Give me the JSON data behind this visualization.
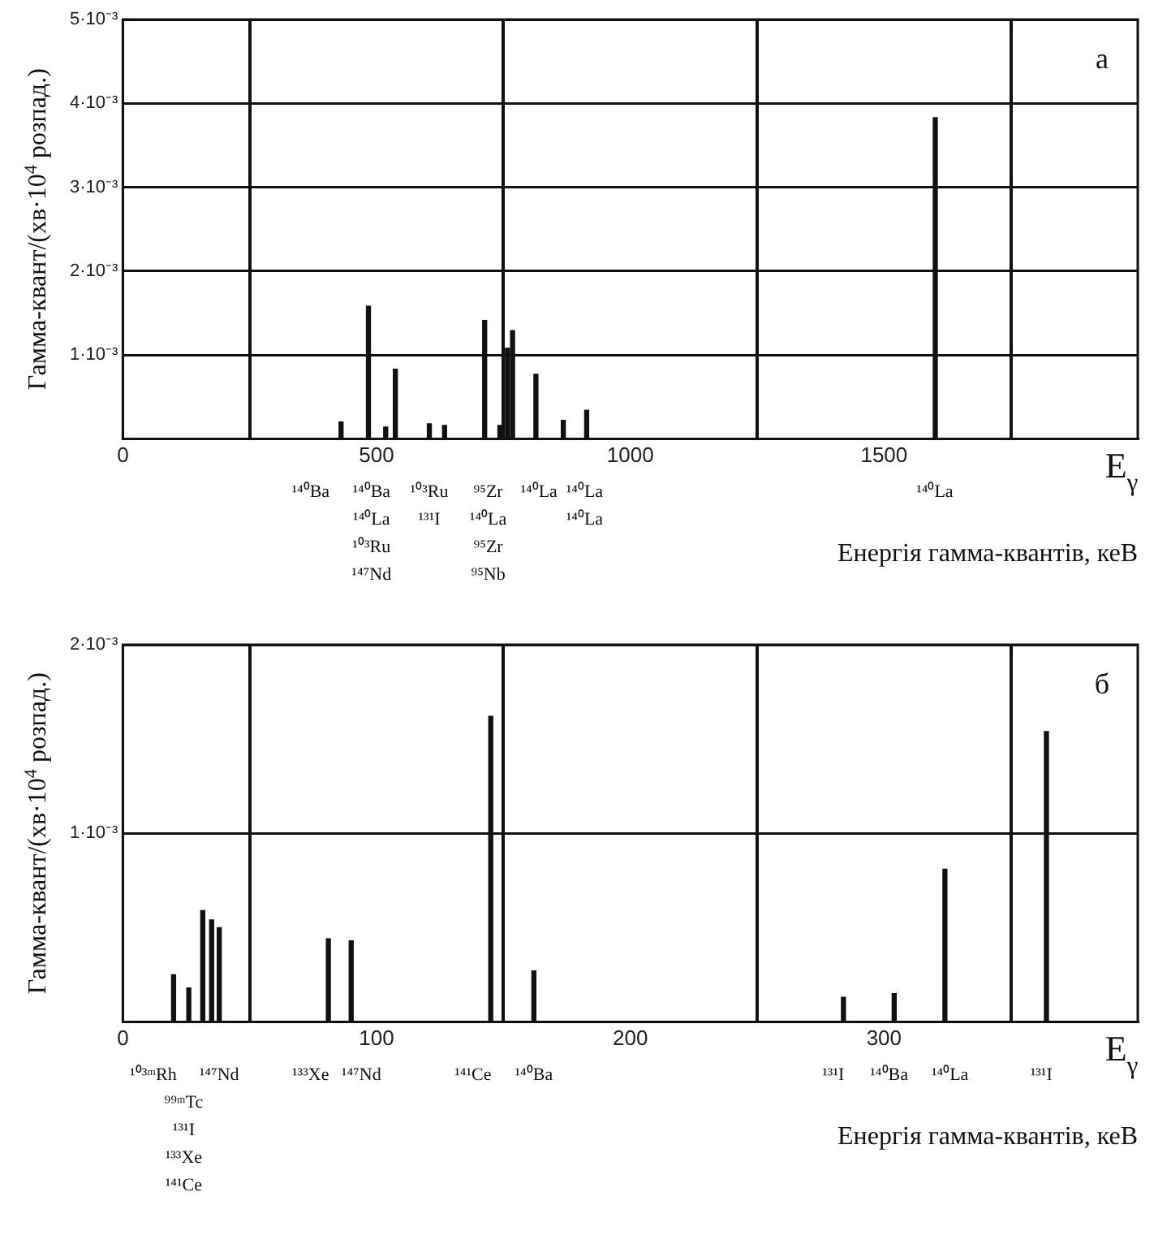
{
  "chart_data": [
    {
      "type": "bar",
      "ylabel": "Гамма-квант/(хв·10$^{4}$ розпад.)",
      "xlabel": "Енергія гамма-квантів, кеВ",
      "grid": true,
      "color": "#111111",
      "x": [
        430,
        484,
        518,
        537,
        604,
        634,
        713,
        743,
        758,
        768,
        814,
        868,
        914,
        1601
      ],
      "values": [
        0.0002,
        0.00158,
        0.00014,
        0.00083,
        0.00018,
        0.00016,
        0.00141,
        0.00016,
        0.00108,
        0.00129,
        0.00077,
        0.00022,
        0.00034,
        0.00383
      ],
      "xlim": [
        0,
        2000
      ],
      "xticks": [
        0,
        500,
        1000,
        1500
      ],
      "ylim": [
        0,
        0.005
      ],
      "yticks": [
        {
          "value": 0,
          "label": null
        },
        {
          "value": 0.001,
          "label": "1·10⁻³"
        },
        {
          "value": 0.002,
          "label": "2·10⁻³"
        },
        {
          "value": 0.003,
          "label": "3·10⁻³"
        },
        {
          "value": 0.004,
          "label": "4·10⁻³"
        },
        {
          "value": 0.005,
          "label": "5·10⁻³"
        }
      ],
      "annotations": [
        "а",
        "E$_{γ}$",
        "¹⁴⁰Ba",
        "¹⁴⁰Ba",
        "¹⁴⁰La",
        "¹⁰³Ru",
        "¹⁴⁷Nd",
        "¹⁰³Ru",
        "¹³¹I",
        "⁹⁵Zr",
        "¹⁴⁰La",
        "⁹⁵Zr",
        "⁹⁵Nb",
        "¹⁴⁰La",
        "¹⁴⁰La",
        "¹⁴⁰La",
        "¹⁴⁰La"
      ]
    },
    {
      "type": "bar",
      "ylabel": "Гамма-квант/(хв·10$^{4}$ розпад.)",
      "xlabel": "Енергія гамма-квантів, кеВ",
      "grid": true,
      "color": "#111111",
      "x": [
        20,
        26,
        31.5,
        35,
        38,
        81,
        90,
        145,
        162,
        284,
        304,
        324,
        364
      ],
      "values": [
        0.00025,
        0.00018,
        0.00059,
        0.00054,
        0.0005,
        0.00044,
        0.00043,
        0.00162,
        0.00027,
        0.00013,
        0.00015,
        0.00081,
        0.00154
      ],
      "xlim": [
        0,
        400
      ],
      "xticks": [
        0,
        100,
        200,
        300
      ],
      "ylim": [
        0,
        0.002
      ],
      "yticks": [
        {
          "value": 0,
          "label": null
        },
        {
          "value": 0.001,
          "label": "1·10⁻³"
        },
        {
          "value": 0.002,
          "label": "2·10⁻³"
        }
      ],
      "annotations": [
        "б",
        "E$_{γ}$",
        "¹⁰³ᵐRh",
        "⁹⁹ᵐTc",
        "¹³¹I",
        "¹³³Xe",
        "¹⁴¹Ce",
        "¹⁴⁷Nd",
        "¹³³Xe",
        "¹⁴⁷Nd",
        "¹⁴¹Ce",
        "¹⁴⁰Ba",
        "¹³¹I",
        "¹⁴⁰Ba",
        "¹⁴⁰La",
        "¹³¹I"
      ]
    }
  ]
}
